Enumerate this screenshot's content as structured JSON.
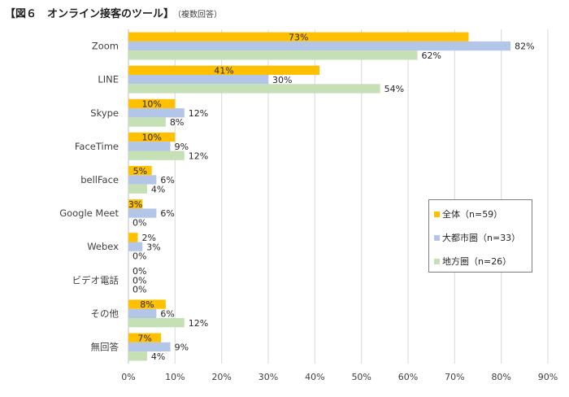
{
  "title": "【図６　オンライン接客のツール】",
  "title_note": "（複数回答）",
  "colors": {
    "all": "#FFC000",
    "metro": "#B4C6E7",
    "regional": "#C5E0B4",
    "grid": "#D9D9D9",
    "axis": "#BFBFBF"
  },
  "chart_data": {
    "type": "bar",
    "orientation": "horizontal",
    "categories": [
      "Zoom",
      "LINE",
      "Skype",
      "FaceTime",
      "bellFace",
      "Google Meet",
      "Webex",
      "ビデオ電話",
      "その他",
      "無回答"
    ],
    "series": [
      {
        "name": "全体（n=59）",
        "values": [
          73,
          41,
          10,
          10,
          5,
          3,
          2,
          0,
          8,
          7
        ]
      },
      {
        "name": "大都市圏（n=33）",
        "values": [
          82,
          30,
          12,
          9,
          6,
          6,
          3,
          0,
          6,
          9
        ]
      },
      {
        "name": "地方圏（n=26）",
        "values": [
          62,
          54,
          8,
          12,
          4,
          0,
          0,
          0,
          12,
          4
        ]
      }
    ],
    "value_suffix": "%",
    "xlim": [
      0,
      90
    ],
    "xticks": [
      0,
      10,
      20,
      30,
      40,
      50,
      60,
      70,
      80,
      90
    ],
    "xtick_labels": [
      "0%",
      "10%",
      "20%",
      "30%",
      "40%",
      "50%",
      "60%",
      "70%",
      "80%",
      "90%"
    ],
    "grid": true,
    "legend_position": "right"
  }
}
